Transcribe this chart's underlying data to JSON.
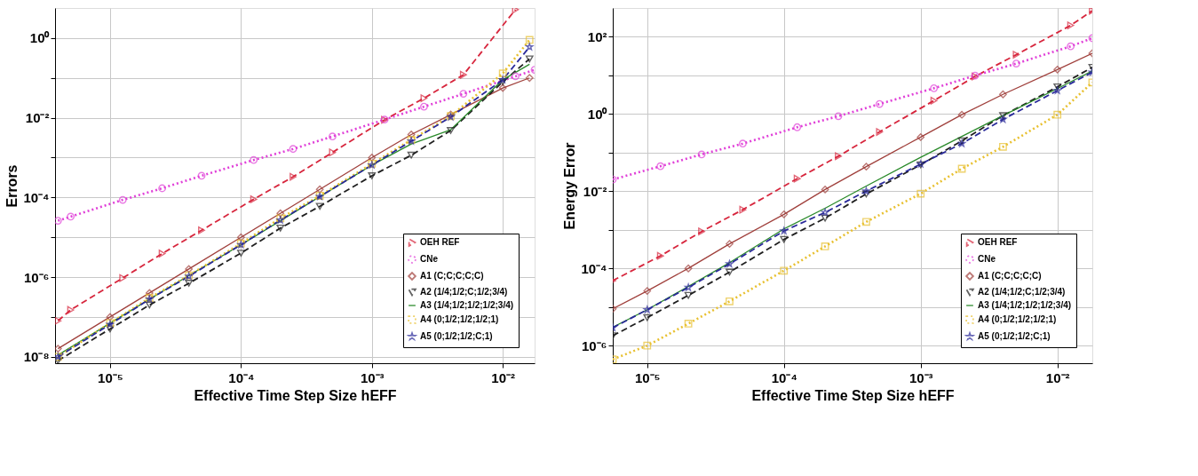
{
  "chart_data": [
    {
      "type": "line",
      "xlabel": "Effective Time Step Size hEFF",
      "ylabel": "Errors",
      "log": "xy",
      "grid": true,
      "legend": "bottom right",
      "xlim": [
        3.8e-06,
        0.0175
      ],
      "ylim": [
        6.9e-09,
        5.7
      ],
      "xticks": [
        {
          "value": 1e-05,
          "label": "10⁻⁵"
        },
        {
          "value": 0.0001,
          "label": "10⁻⁴"
        },
        {
          "value": 0.001,
          "label": "10⁻³"
        },
        {
          "value": 0.01,
          "label": "10⁻²"
        }
      ],
      "yticks": [
        {
          "value": 1e-08,
          "label": "10⁻⁸"
        },
        {
          "value": 1e-07,
          "label": null
        },
        {
          "value": 1e-06,
          "label": "10⁻⁶"
        },
        {
          "value": 1e-05,
          "label": null
        },
        {
          "value": 0.0001,
          "label": "10⁻⁴"
        },
        {
          "value": 0.001,
          "label": null
        },
        {
          "value": 0.01,
          "label": "10⁻²"
        },
        {
          "value": 0.1,
          "label": null
        },
        {
          "value": 1,
          "label": "10⁰"
        }
      ],
      "series": [
        {
          "name": "OEH REF",
          "color": "#d7263d",
          "marker": "triangle-right",
          "line_style": "dashed",
          "x": [
            4e-06,
            5e-06,
            1.25e-05,
            2.5e-05,
            5e-05,
            0.000125,
            0.00025,
            0.0005,
            0.00125,
            0.0025,
            0.005,
            0.0125
          ],
          "values": [
            8e-08,
            1.5e-07,
            9.5e-07,
            3.9e-06,
            1.5e-05,
            9e-05,
            0.00033,
            0.00135,
            0.0089,
            0.031,
            0.12,
            5.2
          ]
        },
        {
          "name": "CNe",
          "color": "#e040d8",
          "marker": "circle",
          "line_style": "dotted",
          "x": [
            4e-06,
            5e-06,
            1.25e-05,
            2.5e-05,
            5e-05,
            0.000125,
            0.00025,
            0.0005,
            0.00125,
            0.0025,
            0.005,
            0.0125,
            0.0175
          ],
          "values": [
            2.6e-05,
            3.3e-05,
            8.7e-05,
            0.00017,
            0.00035,
            0.00087,
            0.00165,
            0.0034,
            0.009,
            0.019,
            0.04,
            0.11,
            0.16
          ]
        },
        {
          "name": "A1 (C;C;C;C;C)",
          "color": "#a0403c",
          "marker": "diamond",
          "line_style": "solid",
          "x": [
            4e-06,
            1e-05,
            2e-05,
            4e-05,
            0.0001,
            0.0002,
            0.0004,
            0.001,
            0.002,
            0.004,
            0.01,
            0.016
          ],
          "values": [
            1.6e-08,
            1e-07,
            4e-07,
            1.6e-06,
            1e-05,
            4e-05,
            0.00016,
            0.001,
            0.0038,
            0.012,
            0.056,
            0.1
          ]
        },
        {
          "name": "A2 (1/4;1/2;C;1/2;3/4)",
          "color": "#202020",
          "marker": "triangle-down",
          "line_style": "dashed",
          "x": [
            4e-06,
            1e-05,
            2e-05,
            4e-05,
            0.0001,
            0.0002,
            0.0004,
            0.001,
            0.002,
            0.004,
            0.01,
            0.016
          ],
          "values": [
            8e-09,
            5e-08,
            2e-07,
            7e-07,
            4e-06,
            1.7e-05,
            6e-05,
            0.00035,
            0.00115,
            0.0048,
            0.08,
            0.3
          ]
        },
        {
          "name": "A3 (1/4;1/2;1/2;1/2;3/4)",
          "color": "#2a8a2a",
          "marker": "none",
          "line_style": "solid",
          "x": [
            4e-06,
            1e-05,
            2e-05,
            4e-05,
            0.0001,
            0.0002,
            0.0004,
            0.001,
            0.002,
            0.004,
            0.01,
            0.016
          ],
          "values": [
            1.1e-08,
            7e-08,
            2.8e-07,
            1.1e-06,
            6.5e-06,
            2.6e-05,
            0.000105,
            0.00065,
            0.0022,
            0.005,
            0.09,
            0.22
          ]
        },
        {
          "name": "A4 (0;1/2;1/2;1/2;1)",
          "color": "#e8c030",
          "marker": "square",
          "line_style": "dotted",
          "x": [
            4e-06,
            1e-05,
            2e-05,
            4e-05,
            0.0001,
            0.0002,
            0.0004,
            0.001,
            0.002,
            0.004,
            0.01,
            0.016
          ],
          "values": [
            1e-08,
            7e-08,
            3e-07,
            1.1e-06,
            7e-06,
            3e-05,
            0.00011,
            0.0007,
            0.0028,
            0.011,
            0.13,
            0.9
          ]
        },
        {
          "name": "A5 (0;1/2;1/2;C;1)",
          "color": "#2a2a9a",
          "marker": "star",
          "line_style": "dashed",
          "x": [
            4e-06,
            1e-05,
            2e-05,
            4e-05,
            0.0001,
            0.0002,
            0.0004,
            0.001,
            0.002,
            0.004,
            0.01,
            0.016
          ],
          "values": [
            1e-08,
            6.5e-08,
            2.8e-07,
            1.05e-06,
            6.5e-06,
            2.7e-05,
            0.000105,
            0.00065,
            0.0026,
            0.0105,
            0.09,
            0.6
          ]
        }
      ]
    },
    {
      "type": "line",
      "xlabel": "Effective Time Step Size hEFF",
      "ylabel": "Energy Error",
      "log": "xy",
      "grid": true,
      "legend": "bottom right",
      "xlim": [
        5.6e-06,
        0.018
      ],
      "ylim": [
        3.5e-07,
        550
      ],
      "xticks": [
        {
          "value": 1e-05,
          "label": "10⁻⁵"
        },
        {
          "value": 0.0001,
          "label": "10⁻⁴"
        },
        {
          "value": 0.001,
          "label": "10⁻³"
        },
        {
          "value": 0.01,
          "label": "10⁻²"
        }
      ],
      "yticks": [
        {
          "value": 1e-06,
          "label": "10⁻⁶"
        },
        {
          "value": 1e-05,
          "label": null
        },
        {
          "value": 0.0001,
          "label": "10⁻⁴"
        },
        {
          "value": 0.001,
          "label": null
        },
        {
          "value": 0.01,
          "label": "10⁻²"
        },
        {
          "value": 0.1,
          "label": null
        },
        {
          "value": 1,
          "label": "10⁰"
        },
        {
          "value": 10,
          "label": null
        },
        {
          "value": 100,
          "label": "10²"
        }
      ],
      "series": [
        {
          "name": "OEH REF",
          "color": "#d7263d",
          "marker": "triangle-right",
          "line_style": "dashed",
          "x": [
            5.6e-06,
            1.25e-05,
            2.5e-05,
            5e-05,
            0.000125,
            0.00025,
            0.0005,
            0.00125,
            0.0025,
            0.005,
            0.0125,
            0.018
          ],
          "values": [
            4.8e-05,
            0.00021,
            0.0009,
            0.0033,
            0.021,
            0.08,
            0.34,
            2.2,
            9.3,
            34,
            195,
            470
          ]
        },
        {
          "name": "CNe",
          "color": "#e040d8",
          "marker": "circle",
          "line_style": "dotted",
          "x": [
            5.6e-06,
            1.25e-05,
            2.5e-05,
            5e-05,
            0.000125,
            0.00025,
            0.0005,
            0.00125,
            0.0025,
            0.005,
            0.0125,
            0.018
          ],
          "values": [
            0.02,
            0.044,
            0.089,
            0.17,
            0.45,
            0.87,
            1.8,
            4.6,
            9.8,
            20,
            56,
            91
          ]
        },
        {
          "name": "A1 (C;C;C;C;C)",
          "color": "#a0403c",
          "marker": "diamond",
          "line_style": "solid",
          "x": [
            5.6e-06,
            1e-05,
            2e-05,
            4e-05,
            0.0001,
            0.0002,
            0.0004,
            0.001,
            0.002,
            0.004,
            0.01,
            0.018
          ],
          "values": [
            9e-06,
            2.6e-05,
            0.0001,
            0.00043,
            0.0025,
            0.011,
            0.043,
            0.25,
            0.95,
            3.2,
            14,
            37
          ]
        },
        {
          "name": "A2 (1/4;1/2;C;1/2;3/4)",
          "color": "#202020",
          "marker": "triangle-down",
          "line_style": "dashed",
          "x": [
            5.6e-06,
            1e-05,
            2e-05,
            4e-05,
            0.0001,
            0.0002,
            0.0004,
            0.001,
            0.002,
            0.004,
            0.01,
            0.018
          ],
          "values": [
            1.8e-06,
            5.3e-06,
            2e-05,
            8e-05,
            0.00056,
            0.002,
            0.0084,
            0.048,
            0.2,
            0.9,
            5,
            16
          ]
        },
        {
          "name": "A3 (1/4;1/2;1/2;1/2;3/4)",
          "color": "#2a8a2a",
          "marker": "none",
          "line_style": "solid",
          "x": [
            5.6e-06,
            1e-05,
            2e-05,
            4e-05,
            0.0001,
            0.0002,
            0.0004,
            0.001,
            0.002,
            0.004,
            0.01,
            0.018
          ],
          "values": [
            3e-06,
            8.5e-06,
            3.4e-05,
            0.00014,
            0.00105,
            0.0036,
            0.0135,
            0.075,
            0.26,
            0.9,
            4.5,
            13
          ]
        },
        {
          "name": "A4 (0;1/2;1/2;1/2;1)",
          "color": "#e8c030",
          "marker": "square",
          "line_style": "dotted",
          "x": [
            5.6e-06,
            1e-05,
            2e-05,
            4e-05,
            0.0001,
            0.0002,
            0.0004,
            0.001,
            0.002,
            0.004,
            0.01,
            0.018
          ],
          "values": [
            4.4e-07,
            1e-06,
            3.7e-06,
            1.4e-05,
            8.7e-05,
            0.00037,
            0.0016,
            0.0086,
            0.038,
            0.14,
            0.95,
            6.5
          ]
        },
        {
          "name": "A5 (0;1/2;1/2;C;1)",
          "color": "#2a2a9a",
          "marker": "star",
          "line_style": "dashed",
          "x": [
            5.6e-06,
            1e-05,
            2e-05,
            4e-05,
            0.0001,
            0.0002,
            0.0004,
            0.001,
            0.002,
            0.004,
            0.01,
            0.018
          ],
          "values": [
            2.9e-06,
            8.5e-06,
            3.2e-05,
            0.00013,
            0.00093,
            0.0028,
            0.01,
            0.05,
            0.17,
            0.72,
            4,
            12
          ]
        }
      ]
    }
  ]
}
